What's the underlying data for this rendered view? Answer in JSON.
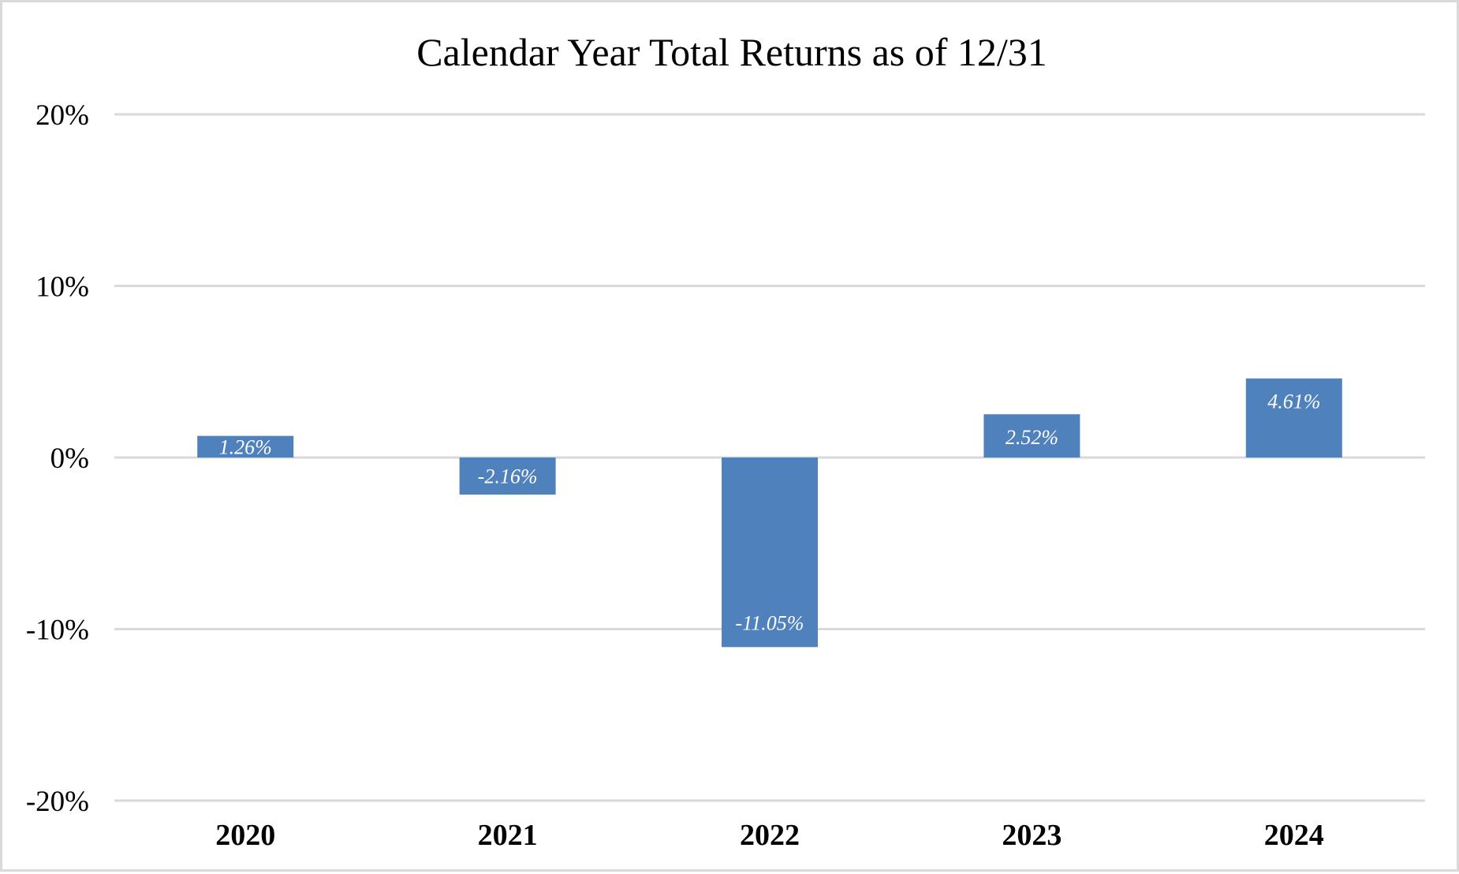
{
  "chart_data": {
    "type": "bar",
    "title": "Calendar Year Total Returns as of 12/31",
    "xlabel": "",
    "ylabel": "",
    "categories": [
      "2020",
      "2021",
      "2022",
      "2023",
      "2024"
    ],
    "values": [
      1.26,
      -2.16,
      -11.05,
      2.52,
      4.61
    ],
    "data_labels": [
      "1.26%",
      "-2.16%",
      "-11.05%",
      "2.52%",
      "4.61%"
    ],
    "ylim": [
      -20,
      20
    ],
    "y_ticks": [
      20,
      10,
      0,
      -10,
      -20
    ],
    "y_tick_labels": [
      "20%",
      "10%",
      "0%",
      "-10%",
      "-20%"
    ],
    "grid": true,
    "legend": "none",
    "colors": {
      "bar": "#4f81bd",
      "gridline": "#d9d9d9",
      "border": "#d9d9d9",
      "text": "#000000",
      "data_label": "#ffffff"
    }
  }
}
